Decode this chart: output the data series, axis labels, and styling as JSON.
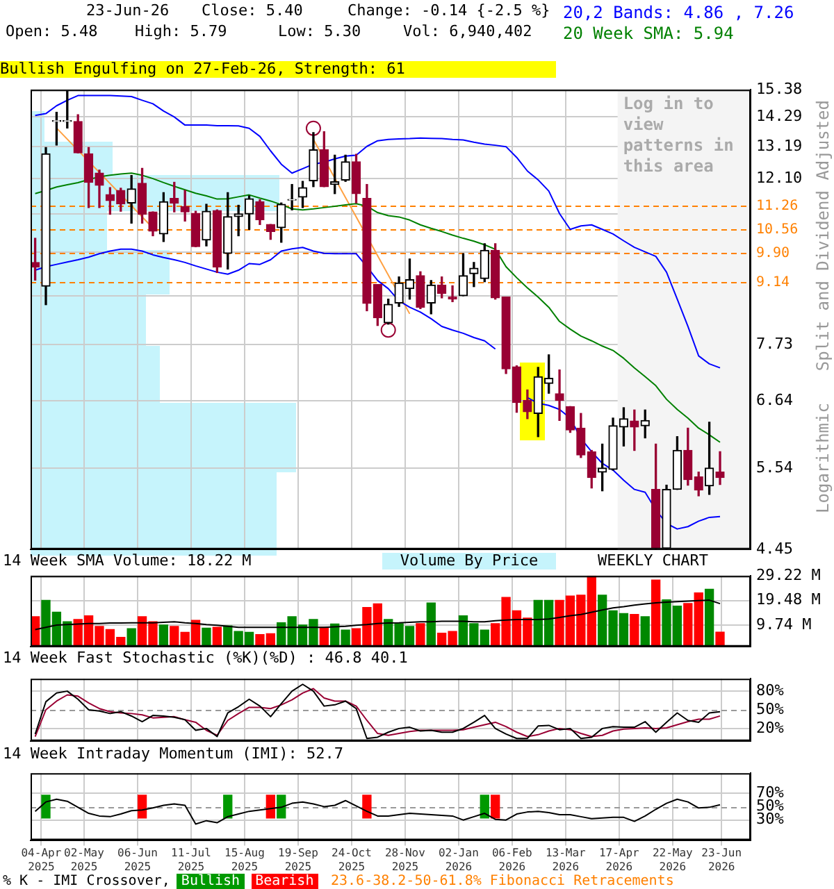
{
  "chart_data": [
    {
      "type": "candlestick",
      "colors": [
        "#990033",
        "#000000",
        "#000000",
        "#000000",
        "#990033",
        "#990033",
        "#990033",
        "#990033",
        "#990033",
        "#000000",
        "#990033",
        "#990033",
        "#000000",
        "#990033",
        "#990033",
        "#990033",
        "#000000",
        "#990033",
        "#000000",
        "#000000",
        "#000000",
        "#990033",
        "#990033",
        "#000000",
        "#000000",
        "#000000",
        "#000000",
        "#990033",
        "#000000",
        "#000000",
        "#990033",
        "#990033",
        "#990033",
        "#000000",
        "#000000",
        "#000000",
        "#990033",
        "#000000",
        "#990033",
        "#990033",
        "#000000",
        "#000000",
        "#000000",
        "#990033",
        "#990033",
        "#990033",
        "#990033",
        "#000000",
        "#000000",
        "#990033",
        "#990033",
        "#990033",
        "#990033",
        "#000000",
        "#000000",
        "#000000",
        "#990033",
        "#000000",
        "#990033",
        "#000000",
        "#000000",
        "#990033",
        "#990033",
        "#000000",
        "#990033"
      ],
      "x": [
        "2025-03-31",
        "2025-04-07",
        "2025-04-14",
        "2025-04-21",
        "2025-04-28",
        "2025-05-05",
        "2025-05-12",
        "2025-05-19",
        "2025-05-26",
        "2025-06-02",
        "2025-06-09",
        "2025-06-16",
        "2025-06-23",
        "2025-06-30",
        "2025-07-07",
        "2025-07-14",
        "2025-07-21",
        "2025-07-28",
        "2025-08-04",
        "2025-08-11",
        "2025-08-18",
        "2025-08-25",
        "2025-09-01",
        "2025-09-08",
        "2025-09-15",
        "2025-09-22",
        "2025-09-29",
        "2025-10-06",
        "2025-10-13",
        "2025-10-20",
        "2025-10-27",
        "2025-11-03",
        "2025-11-10",
        "2025-11-17",
        "2025-11-24",
        "2025-12-01",
        "2025-12-08",
        "2025-12-15",
        "2025-12-22",
        "2025-12-29",
        "2026-01-05",
        "2026-01-12",
        "2026-01-19",
        "2026-01-26",
        "2026-02-02",
        "2026-02-09",
        "2026-02-16",
        "2026-02-23",
        "2026-03-02",
        "2026-03-09",
        "2026-03-16",
        "2026-03-23",
        "2026-03-30",
        "2026-04-06",
        "2026-04-13",
        "2026-04-20",
        "2026-04-27",
        "2026-05-04",
        "2026-05-11",
        "2026-05-18",
        "2026-05-25",
        "2026-06-01",
        "2026-06-08",
        "2026-06-15",
        "2026-06-22"
      ],
      "ohlc": [
        [
          9.65,
          10.3,
          9.2,
          9.53
        ],
        [
          9.05,
          13.16,
          8.61,
          12.94
        ],
        [
          14.12,
          14.47,
          13.25,
          14.15
        ],
        [
          14.12,
          15.32,
          13.87,
          14.15
        ],
        [
          14.12,
          14.38,
          12.97,
          12.97
        ],
        [
          12.94,
          13.16,
          11.19,
          11.98
        ],
        [
          12.28,
          12.38,
          11.19,
          11.88
        ],
        [
          11.59,
          11.81,
          10.99,
          11.4
        ],
        [
          11.72,
          11.79,
          11.08,
          11.3
        ],
        [
          11.33,
          12.2,
          10.73,
          11.77
        ],
        [
          11.95,
          12.44,
          10.73,
          10.99
        ],
        [
          11.06,
          11.06,
          10.37,
          10.5
        ],
        [
          10.42,
          11.65,
          10.21,
          11.37
        ],
        [
          11.47,
          11.98,
          11.06,
          11.32
        ],
        [
          11.22,
          11.72,
          10.79,
          11.06
        ],
        [
          11.02,
          11.08,
          10.07,
          10.07
        ],
        [
          10.25,
          11.29,
          10.09,
          11.08
        ],
        [
          11.1,
          11.12,
          9.39,
          9.53
        ],
        [
          9.89,
          11.65,
          9.48,
          10.92
        ],
        [
          10.92,
          11.26,
          10.37,
          11.0
        ],
        [
          11.0,
          11.55,
          10.55,
          11.46
        ],
        [
          11.37,
          11.43,
          10.69,
          10.83
        ],
        [
          10.69,
          10.69,
          10.27,
          10.49
        ],
        [
          10.6,
          11.33,
          10.19,
          11.29
        ],
        [
          11.42,
          11.91,
          11.12,
          11.44
        ],
        [
          11.51,
          12.01,
          11.19,
          11.81
        ],
        [
          12.03,
          13.7,
          11.84,
          13.08
        ],
        [
          13.08,
          13.73,
          11.84,
          11.84
        ],
        [
          11.91,
          12.89,
          11.62,
          12.0
        ],
        [
          12.05,
          12.89,
          12.01,
          12.66
        ],
        [
          12.66,
          12.92,
          11.33,
          11.62
        ],
        [
          11.47,
          11.91,
          8.47,
          8.64
        ],
        [
          9.09,
          9.09,
          8.14,
          8.31
        ],
        [
          8.2,
          8.74,
          8.17,
          8.62
        ],
        [
          8.65,
          9.28,
          8.57,
          9.13
        ],
        [
          8.99,
          9.74,
          8.74,
          9.21
        ],
        [
          9.31,
          9.41,
          8.52,
          8.55
        ],
        [
          8.65,
          9.19,
          8.4,
          9.08
        ],
        [
          9.08,
          9.28,
          8.77,
          8.88
        ],
        [
          8.79,
          9.06,
          8.68,
          8.74
        ],
        [
          8.82,
          9.88,
          8.82,
          9.31
        ],
        [
          9.36,
          9.65,
          9.04,
          9.5
        ],
        [
          9.24,
          10.15,
          9.16,
          9.97
        ],
        [
          9.97,
          10.15,
          8.74,
          8.77
        ],
        [
          8.79,
          8.79,
          7.15,
          7.24
        ],
        [
          7.28,
          7.3,
          6.44,
          6.61
        ],
        [
          6.65,
          6.84,
          6.33,
          6.45
        ],
        [
          6.42,
          7.27,
          6.03,
          7.09
        ],
        [
          6.96,
          7.52,
          6.78,
          7.06
        ],
        [
          6.77,
          7.22,
          6.3,
          6.65
        ],
        [
          6.54,
          6.54,
          6.1,
          6.14
        ],
        [
          6.17,
          6.42,
          5.7,
          5.74
        ],
        [
          5.79,
          5.81,
          5.25,
          5.4
        ],
        [
          5.48,
          5.91,
          5.21,
          5.54
        ],
        [
          5.52,
          6.34,
          5.51,
          6.21
        ],
        [
          6.19,
          6.52,
          5.88,
          6.33
        ],
        [
          6.29,
          6.48,
          5.81,
          6.19
        ],
        [
          6.21,
          6.48,
          6.01,
          6.3
        ],
        [
          5.23,
          5.91,
          4.45,
          4.46
        ],
        [
          4.46,
          5.29,
          4.45,
          5.23
        ],
        [
          5.23,
          6.03,
          5.23,
          5.81
        ],
        [
          5.81,
          6.17,
          5.29,
          5.37
        ],
        [
          5.41,
          5.48,
          5.14,
          5.22
        ],
        [
          5.28,
          6.27,
          5.16,
          5.54
        ],
        [
          5.48,
          5.79,
          5.3,
          5.4
        ]
      ],
      "xlim": [
        "2025-03-28",
        "2026-07-12"
      ],
      "xticks": [
        "2025-04-04",
        "2025-05-02",
        "2025-06-06",
        "2025-07-11",
        "2025-08-15",
        "2025-09-19",
        "2025-10-24",
        "2025-11-28",
        "2026-01-02",
        "2026-02-06",
        "2026-03-13",
        "2026-04-17",
        "2026-05-22",
        "2026-06-23"
      ],
      "ylim": [
        4.45,
        15.38
      ],
      "yticks": [
        4.45,
        5.54,
        6.64,
        7.73,
        {
          "value": 8.82,
          "label": null
        },
        {
          "value": 9.92,
          "label": null
        },
        {
          "value": 11.01,
          "label": null
        },
        {
          "value": 12.1,
          "label": "12.10"
        },
        13.19,
        14.29,
        15.38
      ],
      "log": "y",
      "grid": true,
      "tick_labels": "y",
      "legend": "top right",
      "ylabel": "Split and Dividend Adjusted",
      "annotations": [
        "23-Jun-26",
        "Close: 5.40",
        "Change: -0.14 {-2.5 %}",
        "Open: 5.48",
        "High: 5.79",
        "Low: 5.30",
        "Vol: 6,940,402",
        "Logarithmic",
        "23.6-38.2-50-61.8% Fibonacci Retracements",
        "Bullish Engulfing on 27-Feb-26, Strength: 61",
        "Volume By Price"
      ],
      "ref_lines": [
        {
          "axis": "y",
          "value": 11.26,
          "label": "11.26",
          "color": "#ff8000",
          "line_style": "dashed"
        },
        {
          "axis": "y",
          "value": 10.56,
          "label": "10.56",
          "color": "#ff8000",
          "line_style": "dashed"
        },
        {
          "axis": "y",
          "value": 9.9,
          "label": "9.90",
          "color": "#ff8000",
          "line_style": "dashed"
        },
        {
          "axis": "y",
          "value": 9.14,
          "label": "9.14",
          "color": "#ff8000",
          "line_style": "dashed"
        }
      ],
      "bands": [
        {
          "axis": "x",
          "from": "2026-04-16",
          "to": "2026-07-12",
          "label": "Log in to view patterns in this area",
          "color": "#f4f4f4"
        }
      ],
      "series": [
        {
          "type": "line",
          "name": "20,2 Bands: 4.86 , 7.26",
          "color": "#0000ff",
          "values": [
            14.35,
            14.42,
            14.73,
            14.95,
            15.14,
            15.14,
            15.14,
            15.14,
            15.12,
            15.1,
            14.95,
            14.81,
            14.52,
            14.29,
            13.98,
            13.98,
            13.98,
            13.96,
            13.96,
            13.95,
            13.86,
            13.56,
            13.04,
            12.58,
            12.28,
            12.43,
            12.58,
            12.65,
            12.76,
            12.86,
            12.89,
            13.2,
            13.4,
            13.45,
            13.47,
            13.48,
            13.5,
            13.49,
            13.48,
            13.45,
            13.43,
            13.35,
            13.28,
            13.24,
            13.19,
            12.81,
            12.35,
            12.06,
            11.7,
            11.01,
            10.55,
            10.65,
            10.68,
            10.55,
            10.42,
            10.23,
            10.05,
            9.93,
            9.81,
            9.4,
            8.74,
            8.12,
            7.5,
            7.34,
            7.26
          ]
        },
        {
          "type": "line",
          "color": "#0000ff",
          "values": [
            9.45,
            9.54,
            9.6,
            9.66,
            9.72,
            9.79,
            9.88,
            9.95,
            10.0,
            10.0,
            9.95,
            9.85,
            9.78,
            9.72,
            9.65,
            9.56,
            9.48,
            9.4,
            9.35,
            9.45,
            9.62,
            9.6,
            9.72,
            9.95,
            10.01,
            10.05,
            9.95,
            9.89,
            9.88,
            9.88,
            9.88,
            9.54,
            9.19,
            8.99,
            8.7,
            8.55,
            8.44,
            8.29,
            8.12,
            8.04,
            7.97,
            7.88,
            7.81,
            7.64,
            null,
            null,
            6.7,
            6.6,
            6.56,
            6.49,
            6.34,
            6.0,
            5.79,
            5.61,
            5.51,
            5.36,
            5.23,
            5.19,
            4.95,
            4.77,
            4.7,
            4.73,
            4.8,
            4.85,
            4.86
          ]
        },
        {
          "type": "line",
          "name": "20 Week SMA: 5.94",
          "color": "#008000",
          "values": [
            11.62,
            11.72,
            11.83,
            11.9,
            11.97,
            12.07,
            12.16,
            12.21,
            12.25,
            12.28,
            12.21,
            12.1,
            11.97,
            11.85,
            11.74,
            11.63,
            11.55,
            11.45,
            11.46,
            11.52,
            11.58,
            11.48,
            11.39,
            11.28,
            11.15,
            11.12,
            11.15,
            11.19,
            11.23,
            11.27,
            11.31,
            11.23,
            11.04,
            10.95,
            10.91,
            10.82,
            10.68,
            10.58,
            10.49,
            10.39,
            10.3,
            10.22,
            10.12,
            10.0,
            9.54,
            9.26,
            9.01,
            8.79,
            8.55,
            8.23,
            8.06,
            7.91,
            7.81,
            7.7,
            7.61,
            7.45,
            7.26,
            7.09,
            6.92,
            6.67,
            6.49,
            6.34,
            6.17,
            6.06,
            5.94
          ]
        },
        {
          "type": "line",
          "color": "#ffa040",
          "x": [
            "2025-04-14",
            "2025-06-16"
          ],
          "values": [
            13.87,
            10.59
          ]
        },
        {
          "type": "line",
          "color": "#ffa040",
          "x": [
            "2025-09-29",
            "2025-12-01"
          ],
          "values": [
            13.45,
            8.4
          ]
        },
        {
          "type": "scatter",
          "marker": "circle",
          "color": "#990033",
          "x": [
            "2025-09-29",
            "2025-11-17"
          ],
          "values": [
            13.86,
            8.04
          ]
        }
      ]
    },
    {
      "type": "bar",
      "title": "14 Week SMA Volume: 18.22 M",
      "annotations": [
        "WEEKLY CHART"
      ],
      "x": [
        "2025-03-31",
        "2025-04-07",
        "2025-04-14",
        "2025-04-21",
        "2025-04-28",
        "2025-05-05",
        "2025-05-12",
        "2025-05-19",
        "2025-05-26",
        "2025-06-02",
        "2025-06-09",
        "2025-06-16",
        "2025-06-23",
        "2025-06-30",
        "2025-07-07",
        "2025-07-14",
        "2025-07-21",
        "2025-07-28",
        "2025-08-04",
        "2025-08-11",
        "2025-08-18",
        "2025-08-25",
        "2025-09-01",
        "2025-09-08",
        "2025-09-15",
        "2025-09-22",
        "2025-09-29",
        "2025-10-06",
        "2025-10-13",
        "2025-10-20",
        "2025-10-27",
        "2025-11-03",
        "2025-11-10",
        "2025-11-17",
        "2025-11-24",
        "2025-12-01",
        "2025-12-08",
        "2025-12-15",
        "2025-12-22",
        "2025-12-29",
        "2026-01-05",
        "2026-01-12",
        "2026-01-19",
        "2026-01-26",
        "2026-02-02",
        "2026-02-09",
        "2026-02-16",
        "2026-02-23",
        "2026-03-02",
        "2026-03-09",
        "2026-03-16",
        "2026-03-23",
        "2026-03-30",
        "2026-04-06",
        "2026-04-13",
        "2026-04-20",
        "2026-04-27",
        "2026-05-04",
        "2026-05-11",
        "2026-05-18",
        "2026-05-25",
        "2026-06-01",
        "2026-06-08",
        "2026-06-15",
        "2026-06-22"
      ],
      "xlim": [
        "2025-03-28",
        "2026-07-12"
      ],
      "xticks": [
        "2025-04-04",
        "2025-05-02",
        "2025-06-06",
        "2025-07-11",
        "2025-08-15",
        "2025-09-19",
        "2025-10-24",
        "2025-11-28",
        "2026-01-02",
        "2026-02-06",
        "2026-03-13",
        "2026-04-17",
        "2026-05-22",
        "2026-06-23"
      ],
      "ylim": [
        1.2,
        29.22
      ],
      "yticks": [
        {
          "value": 9.74,
          "label": "9.74 M"
        },
        {
          "value": 19.48,
          "label": "19.48 M"
        },
        {
          "value": 29.22,
          "label": "29.22 M"
        }
      ],
      "grid": true,
      "tick_labels": "y",
      "series": [
        {
          "type": "bar",
          "colors": [
            "#ff0000",
            "#008800",
            "#008800",
            "#008800",
            "#ff0000",
            "#ff0000",
            "#ff0000",
            "#ff0000",
            "#ff0000",
            "#008800",
            "#ff0000",
            "#ff0000",
            "#008800",
            "#ff0000",
            "#ff0000",
            "#ff0000",
            "#008800",
            "#ff0000",
            "#008800",
            "#008800",
            "#008800",
            "#ff0000",
            "#ff0000",
            "#008800",
            "#008800",
            "#008800",
            "#008800",
            "#ff0000",
            "#008800",
            "#008800",
            "#ff0000",
            "#ff0000",
            "#ff0000",
            "#008800",
            "#008800",
            "#008800",
            "#ff0000",
            "#008800",
            "#ff0000",
            "#ff0000",
            "#008800",
            "#008800",
            "#008800",
            "#ff0000",
            "#ff0000",
            "#ff0000",
            "#ff0000",
            "#008800",
            "#008800",
            "#ff0000",
            "#ff0000",
            "#ff0000",
            "#ff0000",
            "#008800",
            "#008800",
            "#008800",
            "#ff0000",
            "#008800",
            "#ff0000",
            "#008800",
            "#008800",
            "#ff0000",
            "#ff0000",
            "#008800",
            "#ff0000"
          ],
          "values": [
            13.0,
            19.5,
            14.8,
            11.0,
            11.9,
            13.4,
            9.2,
            7.9,
            4.8,
            8.3,
            13.0,
            11.0,
            9.7,
            9.2,
            6.8,
            11.6,
            8.5,
            8.8,
            9.4,
            7.2,
            6.8,
            5.9,
            6.3,
            10.6,
            13.0,
            9.7,
            11.9,
            8.8,
            10.1,
            7.7,
            8.3,
            16.7,
            18.1,
            11.9,
            10.3,
            9.2,
            10.3,
            18.5,
            6.5,
            7.2,
            13.4,
            10.3,
            7.7,
            10.3,
            20.7,
            15.4,
            12.5,
            19.5,
            19.5,
            19.5,
            21.2,
            21.6,
            29.2,
            21.6,
            15.4,
            14.3,
            13.9,
            13.0,
            27.6,
            19.7,
            17.2,
            18.3,
            22.5,
            23.9,
            6.9
          ]
        },
        {
          "type": "line",
          "color": "#000000",
          "values": [
            7.9,
            8.8,
            9.7,
            9.9,
            10.1,
            10.3,
            10.3,
            10.5,
            10.5,
            10.6,
            10.6,
            10.6,
            10.8,
            11.0,
            10.6,
            10.3,
            9.9,
            9.6,
            9.2,
            8.8,
            8.8,
            8.8,
            8.8,
            8.8,
            8.8,
            8.8,
            8.8,
            8.8,
            9.0,
            9.2,
            9.6,
            9.9,
            10.3,
            10.5,
            10.6,
            10.8,
            11.0,
            11.0,
            11.2,
            11.2,
            11.2,
            11.0,
            11.0,
            11.4,
            11.7,
            11.9,
            11.9,
            11.9,
            12.1,
            12.7,
            13.4,
            13.9,
            14.8,
            15.7,
            16.5,
            17.0,
            17.6,
            18.1,
            18.5,
            18.8,
            19.0,
            19.2,
            19.4,
            19.6,
            18.2
          ]
        }
      ]
    },
    {
      "type": "line",
      "title": "14 Week Fast Stochastic (%K)(%D) : 46.8 40.1",
      "x": [
        "2025-03-31",
        "2025-04-07",
        "2025-04-14",
        "2025-04-21",
        "2025-04-28",
        "2025-05-05",
        "2025-05-12",
        "2025-05-19",
        "2025-05-26",
        "2025-06-02",
        "2025-06-09",
        "2025-06-16",
        "2025-06-23",
        "2025-06-30",
        "2025-07-07",
        "2025-07-14",
        "2025-07-21",
        "2025-07-28",
        "2025-08-04",
        "2025-08-11",
        "2025-08-18",
        "2025-08-25",
        "2025-09-01",
        "2025-09-08",
        "2025-09-15",
        "2025-09-22",
        "2025-09-29",
        "2025-10-06",
        "2025-10-13",
        "2025-10-20",
        "2025-10-27",
        "2025-11-03",
        "2025-11-10",
        "2025-11-17",
        "2025-11-24",
        "2025-12-01",
        "2025-12-08",
        "2025-12-15",
        "2025-12-22",
        "2025-12-29",
        "2026-01-05",
        "2026-01-12",
        "2026-01-19",
        "2026-01-26",
        "2026-02-02",
        "2026-02-09",
        "2026-02-16",
        "2026-02-23",
        "2026-03-02",
        "2026-03-09",
        "2026-03-16",
        "2026-03-23",
        "2026-03-30",
        "2026-04-06",
        "2026-04-13",
        "2026-04-20",
        "2026-04-27",
        "2026-05-04",
        "2026-05-11",
        "2026-05-18",
        "2026-05-25",
        "2026-06-01",
        "2026-06-08",
        "2026-06-15",
        "2026-06-22"
      ],
      "xlim": [
        "2025-03-28",
        "2026-07-12"
      ],
      "xticks": [
        "2025-04-04",
        "2025-05-02",
        "2025-06-06",
        "2025-07-11",
        "2025-08-15",
        "2025-09-19",
        "2025-10-24",
        "2025-11-28",
        "2026-01-02",
        "2026-02-06",
        "2026-03-13",
        "2026-04-17",
        "2026-05-22",
        "2026-06-23"
      ],
      "ylim": [
        0,
        100
      ],
      "yticks": [
        {
          "value": 20,
          "label": "20%"
        },
        {
          "value": 50,
          "label": "50%"
        },
        {
          "value": 80,
          "label": "80%"
        }
      ],
      "grid": true,
      "tick_labels": "y",
      "ref_lines": [
        {
          "axis": "y",
          "value": 50,
          "color": "#999999",
          "line_style": "dashed"
        }
      ],
      "series": [
        {
          "color": "#000000",
          "values": [
            11,
            63,
            77,
            80,
            67,
            50,
            48,
            44,
            47,
            40,
            31,
            41,
            40,
            38,
            34,
            17,
            20,
            7,
            45,
            55,
            67,
            56,
            39,
            60,
            80,
            91,
            80,
            56,
            58,
            64,
            52,
            4,
            6,
            14,
            20,
            22,
            16,
            17,
            14,
            14,
            20,
            30,
            41,
            20,
            11,
            4,
            4,
            24,
            25,
            18,
            20,
            4,
            6,
            20,
            23,
            22,
            22,
            31,
            14,
            30,
            45,
            33,
            30,
            45,
            46.8
          ]
        },
        {
          "color": "#990033",
          "values": [
            7,
            50,
            64,
            74,
            72,
            61,
            52,
            47,
            45,
            44,
            42,
            37,
            38,
            39,
            34,
            30,
            17,
            9,
            33,
            44,
            54,
            54,
            52,
            58,
            66,
            77,
            84,
            69,
            64,
            64,
            56,
            33,
            12,
            9,
            12,
            15,
            17,
            17,
            17,
            17,
            18,
            22,
            26,
            30,
            23,
            14,
            7,
            10,
            16,
            20,
            18,
            12,
            7,
            9,
            16,
            19,
            20,
            21,
            20,
            21,
            26,
            31,
            35,
            35,
            40.1
          ]
        }
      ]
    },
    {
      "type": "line",
      "title": "14 Week Intraday Momentum (IMI): 52.7",
      "x": [
        "2025-03-31",
        "2025-04-07",
        "2025-04-14",
        "2025-04-21",
        "2025-04-28",
        "2025-05-05",
        "2025-05-12",
        "2025-05-19",
        "2025-05-26",
        "2025-06-02",
        "2025-06-09",
        "2025-06-16",
        "2025-06-23",
        "2025-06-30",
        "2025-07-07",
        "2025-07-14",
        "2025-07-21",
        "2025-07-28",
        "2025-08-04",
        "2025-08-11",
        "2025-08-18",
        "2025-08-25",
        "2025-09-01",
        "2025-09-08",
        "2025-09-15",
        "2025-09-22",
        "2025-09-29",
        "2025-10-06",
        "2025-10-13",
        "2025-10-20",
        "2025-10-27",
        "2025-11-03",
        "2025-11-10",
        "2025-11-17",
        "2025-11-24",
        "2025-12-01",
        "2025-12-08",
        "2025-12-15",
        "2025-12-22",
        "2025-12-29",
        "2026-01-05",
        "2026-01-12",
        "2026-01-19",
        "2026-01-26",
        "2026-02-02",
        "2026-02-09",
        "2026-02-16",
        "2026-02-23",
        "2026-03-02",
        "2026-03-09",
        "2026-03-16",
        "2026-03-23",
        "2026-03-30",
        "2026-04-06",
        "2026-04-13",
        "2026-04-20",
        "2026-04-27",
        "2026-05-04",
        "2026-05-11",
        "2026-05-18",
        "2026-05-25",
        "2026-06-01",
        "2026-06-08",
        "2026-06-15",
        "2026-06-22"
      ],
      "xlim": [
        "2025-03-28",
        "2026-07-12"
      ],
      "xticks": [
        {
          "value": "2025-04-04",
          "label": "04-Apr 2025"
        },
        {
          "value": "2025-05-02",
          "label": "02-May 2025"
        },
        {
          "value": "2025-06-06",
          "label": "06-Jun 2025"
        },
        {
          "value": "2025-07-11",
          "label": "11-Jul 2025"
        },
        {
          "value": "2025-08-15",
          "label": "15-Aug 2025"
        },
        {
          "value": "2025-09-19",
          "label": "19-Sep 2025"
        },
        {
          "value": "2025-10-24",
          "label": "24-Oct 2025"
        },
        {
          "value": "2025-11-28",
          "label": "28-Nov 2025"
        },
        {
          "value": "2026-01-02",
          "label": "02-Jan 2026"
        },
        {
          "value": "2026-02-06",
          "label": "06-Feb 2026"
        },
        {
          "value": "2026-03-13",
          "label": "13-Mar 2026"
        },
        {
          "value": "2026-04-17",
          "label": "17-Apr 2026"
        },
        {
          "value": "2026-05-22",
          "label": "22-May 2026"
        },
        {
          "value": "2026-06-23",
          "label": "23-Jun 2026"
        }
      ],
      "ylim": [
        0,
        100
      ],
      "yticks": [
        {
          "value": 30,
          "label": "30%"
        },
        {
          "value": 50,
          "label": "50%"
        },
        {
          "value": 70,
          "label": "70%"
        }
      ],
      "grid": true,
      "legend": "bottom left",
      "legend_title": "% K - IMI Crossover,",
      "ref_lines": [
        {
          "axis": "y",
          "value": 50,
          "color": "#999999",
          "line_style": "dashed"
        }
      ],
      "series": [
        {
          "color": "#000000",
          "values": [
            43,
            57,
            61,
            58,
            49,
            40,
            36,
            35,
            39,
            44,
            45,
            48,
            52,
            54,
            52,
            24,
            29,
            26,
            35,
            39,
            43,
            45,
            47,
            49,
            55,
            57,
            54,
            50,
            52,
            59,
            51,
            43,
            36,
            36,
            38,
            40,
            39,
            38,
            37,
            36,
            30,
            35,
            40,
            31,
            30,
            39,
            42,
            43,
            41,
            38,
            38,
            35,
            32,
            33,
            34,
            34,
            28,
            36,
            46,
            55,
            61,
            57,
            48,
            49,
            52.7
          ]
        },
        {
          "type": "bar",
          "name": "Bullish",
          "color": "#009900",
          "x": [
            "2025-04-07",
            "2025-08-04",
            "2025-09-08",
            "2026-01-19"
          ],
          "base": [
            33,
            33,
            33,
            33
          ],
          "values": [
            34,
            34,
            34,
            34
          ]
        },
        {
          "type": "bar",
          "name": "Bearish",
          "color": "#ff0000",
          "x": [
            "2025-06-09",
            "2025-09-01",
            "2025-11-03",
            "2026-01-26"
          ],
          "base": [
            33,
            33,
            33,
            33
          ],
          "values": [
            34,
            34,
            34,
            34
          ]
        }
      ]
    }
  ]
}
